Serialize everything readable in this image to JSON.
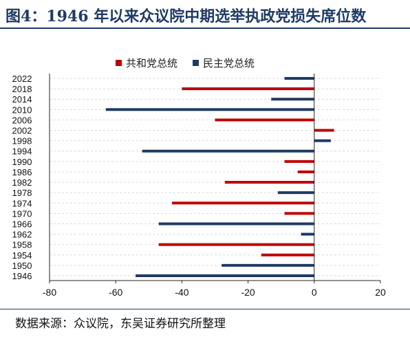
{
  "header": {
    "title": "图4：1946 年以来众议院中期选举执政党损失席位数"
  },
  "footer": {
    "source": "数据来源：众议院，东吴证券研究所整理"
  },
  "colors": {
    "republican": "#c00000",
    "democrat": "#1f3a64",
    "title": "#1f3a64",
    "grid": "#d9d9d9"
  },
  "chart_data": {
    "type": "bar",
    "orientation": "horizontal",
    "title": "",
    "xlabel": "",
    "ylabel": "",
    "xlim": [
      -80,
      20
    ],
    "xticks": [
      -80,
      -60,
      -40,
      -20,
      0,
      20
    ],
    "legend_position": "top",
    "grid": true,
    "categories": [
      "2022",
      "2018",
      "2014",
      "2010",
      "2006",
      "2002",
      "1998",
      "1994",
      "1990",
      "1986",
      "1982",
      "1978",
      "1974",
      "1970",
      "1966",
      "1962",
      "1958",
      "1954",
      "1950",
      "1946"
    ],
    "series": [
      {
        "name": "共和党总统",
        "color": "#c00000",
        "values": [
          null,
          -40,
          null,
          null,
          -30,
          6,
          null,
          null,
          -9,
          -5,
          -27,
          null,
          -43,
          -9,
          null,
          null,
          -47,
          -16,
          null,
          null
        ]
      },
      {
        "name": "民主党总统",
        "color": "#1f3a64",
        "values": [
          -9,
          null,
          -13,
          -63,
          null,
          null,
          5,
          -52,
          null,
          null,
          null,
          -11,
          null,
          null,
          -47,
          -4,
          null,
          null,
          -28,
          -54
        ]
      }
    ]
  }
}
